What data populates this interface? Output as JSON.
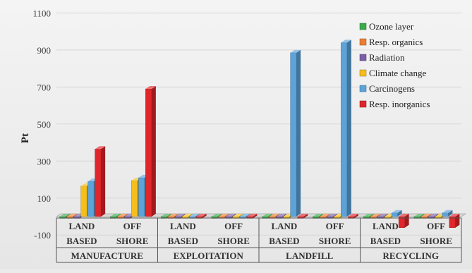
{
  "chart_data": {
    "type": "bar",
    "style": "3d-clustered-columns",
    "ylabel": "Pt",
    "xlabel": "",
    "ylim": [
      -100,
      1100
    ],
    "yticks": [
      -100,
      100,
      300,
      500,
      700,
      900,
      1100
    ],
    "grid": true,
    "legend_position": "top-right",
    "category_levels": {
      "subcategories": [
        [
          "LAND",
          "BASED"
        ],
        [
          "OFF",
          "SHORE"
        ],
        [
          "LAND",
          "BASED"
        ],
        [
          "OFF",
          "SHORE"
        ],
        [
          "LAND",
          "BASED"
        ],
        [
          "OFF",
          "SHORE"
        ],
        [
          "LAND",
          "BASED"
        ],
        [
          "OFF",
          "SHORE"
        ]
      ],
      "groups": [
        "MANUFACTURE",
        "EXPLOITATION",
        "LANDFILL",
        "RECYCLING"
      ]
    },
    "series": [
      {
        "name": "Ozone layer",
        "color": "#3aaa4a",
        "values": [
          0,
          0,
          0,
          0,
          0,
          0,
          0,
          0
        ]
      },
      {
        "name": "Resp. organics",
        "color": "#ed7d31",
        "values": [
          0,
          0,
          0,
          0,
          0,
          0,
          0,
          0
        ]
      },
      {
        "name": "Radiation",
        "color": "#7b5ea7",
        "values": [
          0,
          0,
          0,
          0,
          0,
          0,
          0,
          0
        ]
      },
      {
        "name": "Climate change",
        "color": "#f5be1a",
        "values": [
          165,
          195,
          0,
          0,
          0,
          0,
          -5,
          -5
        ]
      },
      {
        "name": "Carcinogens",
        "color": "#5ba3d9",
        "values": [
          190,
          210,
          0,
          0,
          885,
          940,
          20,
          20
        ]
      },
      {
        "name": "Resp. inorganics",
        "color": "#e0262a",
        "values": [
          365,
          690,
          0,
          0,
          0,
          0,
          -60,
          -60
        ]
      }
    ]
  }
}
